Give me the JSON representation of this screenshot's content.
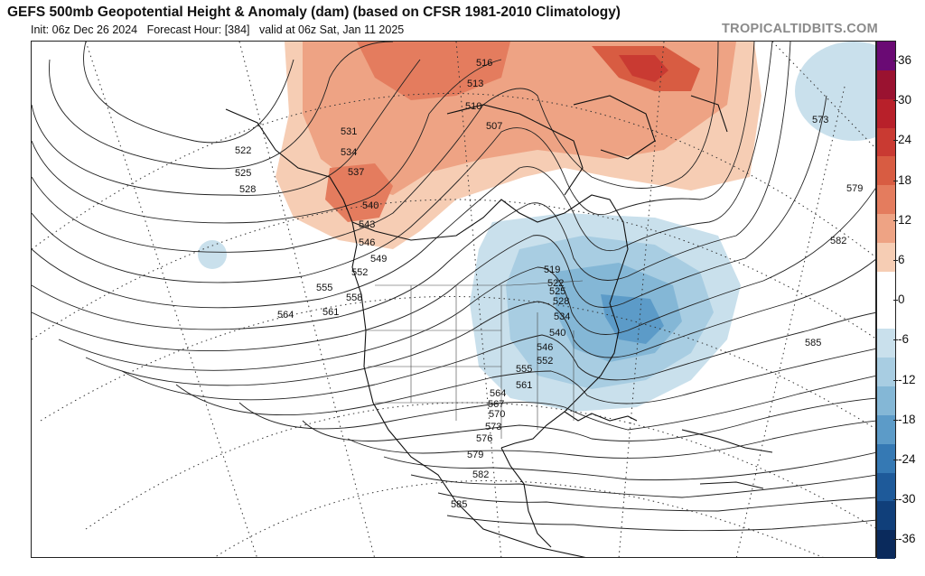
{
  "header": {
    "title": "GEFS 500mb Geopotential Height & Anomaly (dam) (based on CFSR 1981-2010 Climatology)",
    "init": "Init: 06z Dec 26 2024",
    "forecast_hour": "Forecast Hour: [384]",
    "valid": "valid at 06z Sat, Jan 11 2025",
    "credit": "TROPICALTIDBITS.COM"
  },
  "colorbar": {
    "ticks": [
      "36",
      "30",
      "24",
      "18",
      "12",
      "6",
      "0",
      "-6",
      "-12",
      "-18",
      "-24",
      "-30",
      "-36"
    ],
    "colors": [
      "#6a0a74",
      "#9a1230",
      "#b8202a",
      "#c93a32",
      "#d85c42",
      "#e47c5e",
      "#eea384",
      "#f6cdb4",
      "#ffffff",
      "#ffffff",
      "#c9e0ec",
      "#a8cde2",
      "#84b7d6",
      "#5c9bc8",
      "#3579b4",
      "#1e5a9a",
      "#103f7a",
      "#0a2a5c"
    ]
  },
  "contour_labels": [
    {
      "text": "516"
    },
    {
      "text": "513"
    },
    {
      "text": "510"
    },
    {
      "text": "507"
    },
    {
      "text": "531"
    },
    {
      "text": "534"
    },
    {
      "text": "537"
    },
    {
      "text": "522"
    },
    {
      "text": "525"
    },
    {
      "text": "528"
    },
    {
      "text": "540"
    },
    {
      "text": "543"
    },
    {
      "text": "546"
    },
    {
      "text": "549"
    },
    {
      "text": "552"
    },
    {
      "text": "555"
    },
    {
      "text": "558"
    },
    {
      "text": "561"
    },
    {
      "text": "564"
    },
    {
      "text": "519"
    },
    {
      "text": "522"
    },
    {
      "text": "525"
    },
    {
      "text": "528"
    },
    {
      "text": "534"
    },
    {
      "text": "540"
    },
    {
      "text": "546"
    },
    {
      "text": "552"
    },
    {
      "text": "555"
    },
    {
      "text": "561"
    },
    {
      "text": "564"
    },
    {
      "text": "567"
    },
    {
      "text": "570"
    },
    {
      "text": "573"
    },
    {
      "text": "576"
    },
    {
      "text": "579"
    },
    {
      "text": "582"
    },
    {
      "text": "585"
    },
    {
      "text": "573"
    },
    {
      "text": "579"
    },
    {
      "text": "582"
    },
    {
      "text": "585"
    }
  ]
}
